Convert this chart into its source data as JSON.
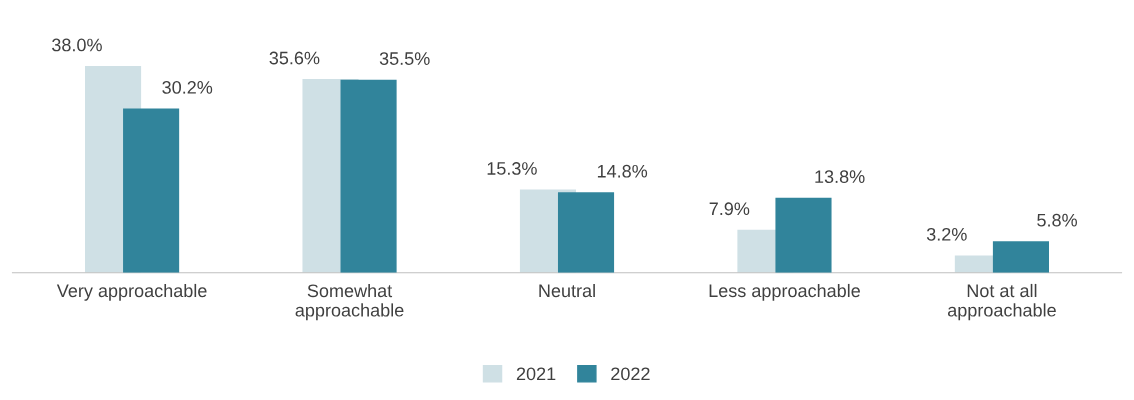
{
  "chart_data": {
    "type": "bar",
    "categories": [
      "Very approachable",
      "Somewhat\napproachable",
      "Neutral",
      "Less approachable",
      "Not at all\napproachable"
    ],
    "series": [
      {
        "name": "2021",
        "color": "#cfe0e5",
        "values": [
          38.0,
          35.6,
          15.3,
          7.9,
          3.2
        ],
        "value_labels": [
          "38.0%",
          "35.6%",
          "15.3%",
          "7.9%",
          "3.2%"
        ]
      },
      {
        "name": "2022",
        "color": "#31849b",
        "values": [
          30.2,
          35.5,
          14.8,
          13.8,
          5.8
        ],
        "value_labels": [
          "30.2%",
          "35.5%",
          "14.8%",
          "13.8%",
          "5.8%"
        ]
      }
    ],
    "legend": "bottom",
    "grid": false
  }
}
